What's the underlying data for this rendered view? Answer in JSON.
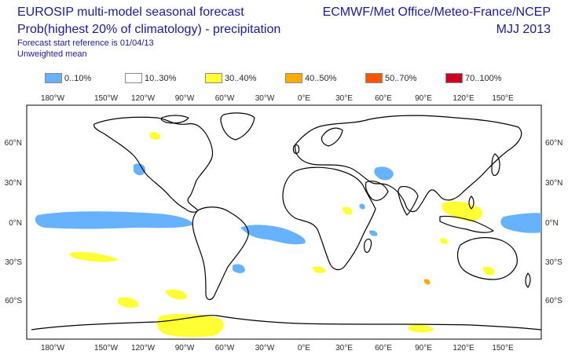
{
  "header": {
    "title_line1": "EUROSIP multi-model seasonal forecast",
    "title_line2": "Prob(highest 20% of climatology) - precipitation",
    "start_reference": "Forecast start reference is 01/04/13",
    "weighting": "Unweighted mean",
    "organizations": "ECMWF/Met Office/Meteo-France/NCEP",
    "season": "MJJ 2013"
  },
  "legend": [
    {
      "label": "0..10%",
      "color": "#66b2ff"
    },
    {
      "label": "10..30%",
      "color": "#ffffff"
    },
    {
      "label": "30..40%",
      "color": "#ffff33"
    },
    {
      "label": "40..50%",
      "color": "#ffaa00"
    },
    {
      "label": "50..70%",
      "color": "#ff5500"
    },
    {
      "label": "70..100%",
      "color": "#cc0022"
    }
  ],
  "map": {
    "projection": "Robinson-like global, centered on 0°E",
    "lon_ticks": [
      "180°W",
      "150°W",
      "120°W",
      "90°W",
      "60°W",
      "30°W",
      "0°E",
      "30°E",
      "60°E",
      "90°E",
      "120°E",
      "150°E"
    ],
    "lat_ticks_left": [
      "60°N",
      "30°N",
      "0°N",
      "30°S",
      "60°S"
    ],
    "lat_ticks_right": [
      "60°N",
      "30°N",
      "0°N",
      "30°S",
      "60°S"
    ],
    "border_color": "#000000",
    "coastline_color": "#000000"
  }
}
